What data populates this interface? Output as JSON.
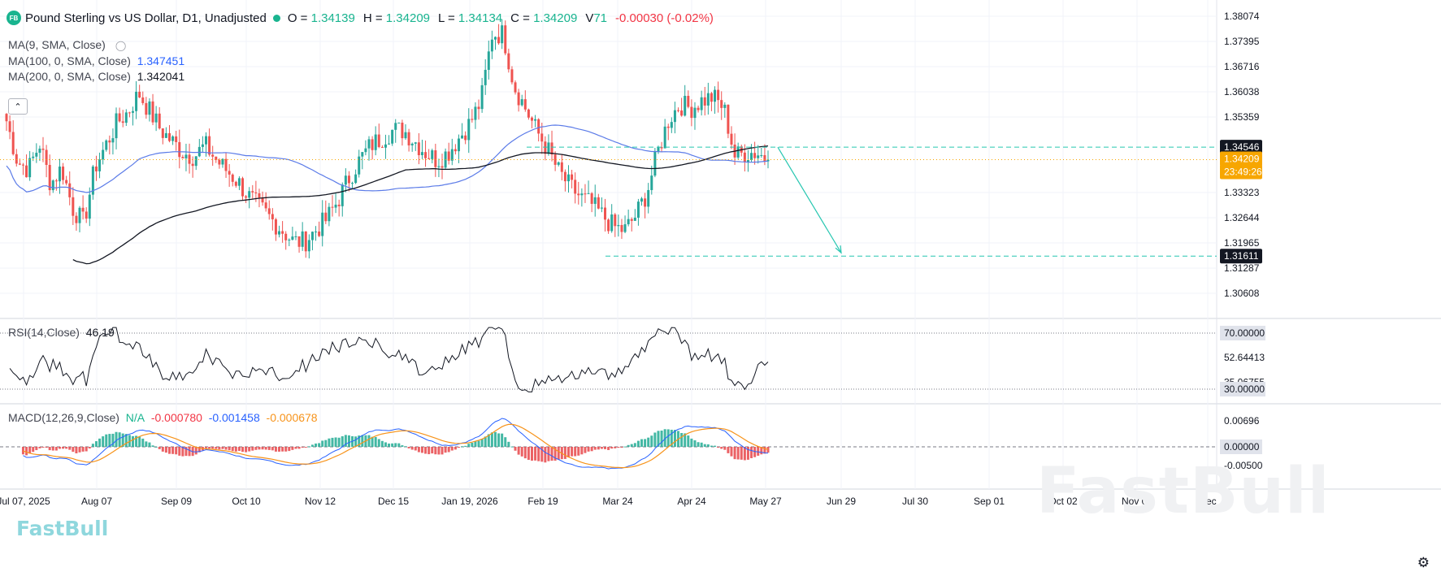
{
  "header": {
    "logo": "FB",
    "title": "Pound Sterling vs US Dollar, D1, Unadjusted",
    "open_label": "O =",
    "open": "1.34139",
    "high_label": "H =",
    "high": "1.34209",
    "low_label": "L =",
    "low": "1.34134",
    "close_label": "C =",
    "close": "1.34209",
    "v_label": "V",
    "v": "71",
    "change": "-0.00030 (-0.02%)"
  },
  "indicators": {
    "ma9": {
      "label": "MA(9, SMA, Close)"
    },
    "ma100": {
      "label": "MA(100, 0, SMA, Close)",
      "value": "1.347451",
      "color": "#2962ff"
    },
    "ma200": {
      "label": "MA(200, 0, SMA, Close)",
      "value": "1.342041",
      "color": "#131722"
    },
    "rsi": {
      "label": "RSI(14,Close)",
      "value": "46.19"
    },
    "macd": {
      "label": "MACD(12,26,9,Close)",
      "na": "N/A",
      "hist": "-0.000780",
      "macd": "-0.001458",
      "signal": "-0.000678"
    }
  },
  "colors": {
    "up": "#26a69a",
    "down": "#ef5350",
    "bull_bar": "#22ab94",
    "bear_bar": "#e8474a",
    "ma100": "#5b7be8",
    "ma200": "#131722",
    "macd_line": "#2962ff",
    "signal_line": "#f7931a"
  },
  "watermark": "FastBull",
  "gear_icon": "gear-icon",
  "chart_data": {
    "type": "candlestick",
    "price_axis_ticks": [
      "1.38074",
      "1.37395",
      "1.36716",
      "1.36038",
      "1.35359",
      "1.33323",
      "1.32644",
      "1.31965",
      "1.31287",
      "1.30608"
    ],
    "price_badges": [
      {
        "value": "1.34546",
        "kind": "target-top"
      },
      {
        "value": "1.34209",
        "kind": "last-price"
      },
      {
        "value": "23:49:26",
        "kind": "countdown"
      },
      {
        "value": "1.31611",
        "kind": "target-bottom"
      }
    ],
    "time_axis_labels": [
      "Jul 07, 2025",
      "Aug 07",
      "Sep 09",
      "Oct 10",
      "Nov 12",
      "Dec 15",
      "Jan 19, 2026",
      "Feb 19",
      "Mar 24",
      "Apr 24",
      "May 27",
      "Jun 29",
      "Jul 30",
      "Sep 01",
      "Oct 02",
      "Nov 04",
      "Dec"
    ],
    "last_price": 1.34209,
    "annotation": {
      "from_price": 1.34546,
      "to_price": 1.31611,
      "description": "projected down move"
    },
    "rsi_axis": [
      "70.00000",
      "52.64413",
      "35.06755",
      "30.00000"
    ],
    "macd_axis": [
      "0.00696",
      "0.00000",
      "-0.00500"
    ],
    "ma_close_path_anchors": [
      1.3525,
      1.3415,
      1.3395,
      1.3465,
      1.3355,
      1.34,
      1.329,
      1.325,
      1.34,
      1.346,
      1.352,
      1.355,
      1.36,
      1.355,
      1.35,
      1.347,
      1.344,
      1.343,
      1.346,
      1.342,
      1.339,
      1.336,
      1.332,
      1.329,
      1.326,
      1.323,
      1.32,
      1.32,
      1.323,
      1.326,
      1.331,
      1.337,
      1.342,
      1.346,
      1.348,
      1.35,
      1.35,
      1.347,
      1.344,
      1.342,
      1.344,
      1.348,
      1.352,
      1.358,
      1.376,
      1.376,
      1.362,
      1.356,
      1.35,
      1.345,
      1.339,
      1.335,
      1.332,
      1.33,
      1.327,
      1.324,
      1.323,
      1.327,
      1.333,
      1.344,
      1.353,
      1.357,
      1.356,
      1.358,
      1.359,
      1.356,
      1.343,
      1.344,
      1.344,
      1.3421
    ]
  }
}
